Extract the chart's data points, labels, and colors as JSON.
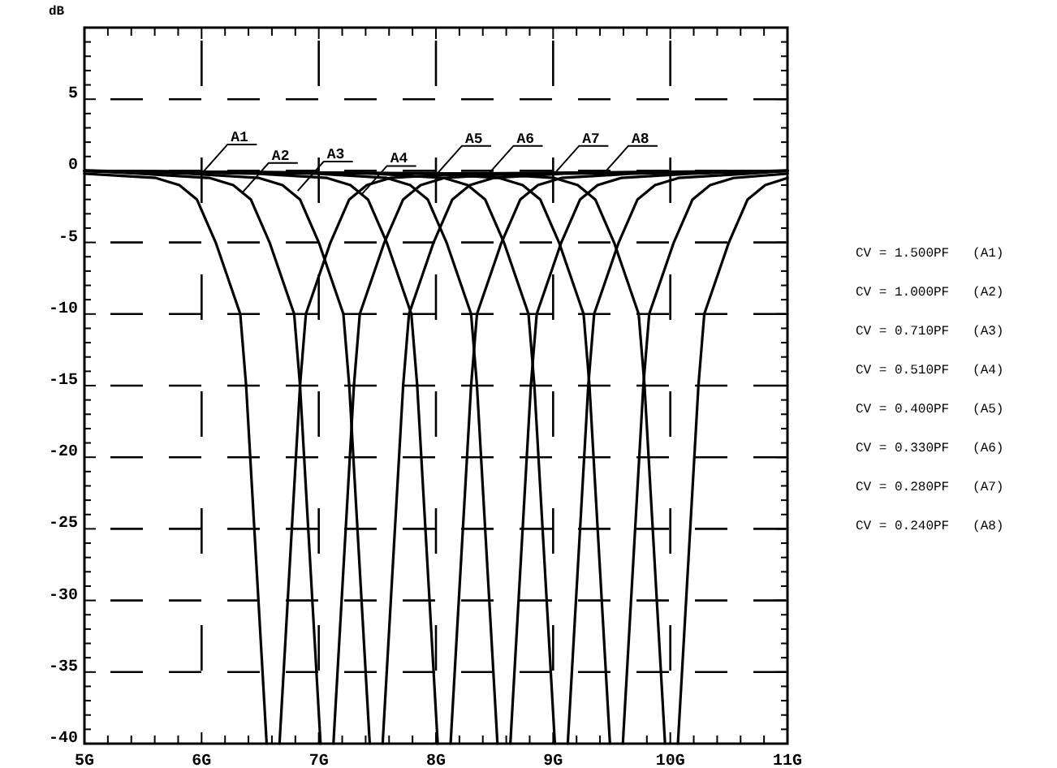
{
  "chart_data": {
    "type": "line",
    "ylabel": "dB",
    "xlim": [
      5,
      11
    ],
    "ylim": [
      -40,
      10
    ],
    "xticks": [
      {
        "value": 5,
        "label": "5G"
      },
      {
        "value": 5.2,
        "label": null
      },
      {
        "value": 5.4,
        "label": null
      },
      {
        "value": 5.6,
        "label": null
      },
      {
        "value": 5.8,
        "label": null
      },
      {
        "value": 6,
        "label": "6G"
      },
      {
        "value": 6.2,
        "label": null
      },
      {
        "value": 6.4,
        "label": null
      },
      {
        "value": 6.6,
        "label": null
      },
      {
        "value": 6.8,
        "label": null
      },
      {
        "value": 7,
        "label": "7G"
      },
      {
        "value": 7.2,
        "label": null
      },
      {
        "value": 7.4,
        "label": null
      },
      {
        "value": 7.6,
        "label": null
      },
      {
        "value": 7.8,
        "label": null
      },
      {
        "value": 8,
        "label": "8G"
      },
      {
        "value": 8.2,
        "label": null
      },
      {
        "value": 8.4,
        "label": null
      },
      {
        "value": 8.6,
        "label": null
      },
      {
        "value": 8.8,
        "label": null
      },
      {
        "value": 9,
        "label": "9G"
      },
      {
        "value": 9.2,
        "label": null
      },
      {
        "value": 9.4,
        "label": null
      },
      {
        "value": 9.6,
        "label": null
      },
      {
        "value": 9.8,
        "label": null
      },
      {
        "value": 10,
        "label": "10G"
      },
      {
        "value": 10.2,
        "label": null
      },
      {
        "value": 10.4,
        "label": null
      },
      {
        "value": 10.6,
        "label": null
      },
      {
        "value": 10.8,
        "label": null
      },
      {
        "value": 11,
        "label": "11G"
      }
    ],
    "yticks": [
      -40,
      {
        "value": -39,
        "label": null
      },
      {
        "value": -38,
        "label": null
      },
      {
        "value": -37,
        "label": null
      },
      {
        "value": -36,
        "label": null
      },
      -35,
      {
        "value": -34,
        "label": null
      },
      {
        "value": -33,
        "label": null
      },
      {
        "value": -32,
        "label": null
      },
      {
        "value": -31,
        "label": null
      },
      -30,
      {
        "value": -29,
        "label": null
      },
      {
        "value": -28,
        "label": null
      },
      {
        "value": -27,
        "label": null
      },
      {
        "value": -26,
        "label": null
      },
      -25,
      {
        "value": -24,
        "label": null
      },
      {
        "value": -23,
        "label": null
      },
      {
        "value": -22,
        "label": null
      },
      {
        "value": -21,
        "label": null
      },
      -20,
      {
        "value": -19,
        "label": null
      },
      {
        "value": -18,
        "label": null
      },
      {
        "value": -17,
        "label": null
      },
      {
        "value": -16,
        "label": null
      },
      -15,
      {
        "value": -14,
        "label": null
      },
      {
        "value": -13,
        "label": null
      },
      {
        "value": -12,
        "label": null
      },
      {
        "value": -11,
        "label": null
      },
      -10,
      {
        "value": -9,
        "label": null
      },
      {
        "value": -8,
        "label": null
      },
      {
        "value": -7,
        "label": null
      },
      {
        "value": -6,
        "label": null
      },
      -5,
      {
        "value": -4,
        "label": null
      },
      {
        "value": -3,
        "label": null
      },
      {
        "value": -2,
        "label": null
      },
      {
        "value": -1,
        "label": null
      },
      0,
      {
        "value": 1,
        "label": null
      },
      {
        "value": 2,
        "label": null
      },
      {
        "value": 3,
        "label": null
      },
      {
        "value": 4,
        "label": null
      },
      5,
      {
        "value": 6,
        "label": null
      },
      {
        "value": 7,
        "label": null
      },
      {
        "value": 8,
        "label": null
      },
      {
        "value": 9,
        "label": null
      },
      {
        "value": 10,
        "label": null
      }
    ],
    "grid": true,
    "series": [
      {
        "color": "#000000",
        "x": [
          5,
          5.61,
          5.81,
          5.96,
          6.12,
          6.33,
          6.38,
          6.555,
          6.61,
          6.665,
          6.84,
          6.89,
          7.1,
          7.26,
          7.41,
          7.61,
          8.21,
          11
        ],
        "values": [
          -0.2,
          -0.5,
          -1,
          -2,
          -5,
          -10,
          -15,
          -40,
          null,
          -40,
          -15,
          -10,
          -5,
          -2,
          -1,
          -0.5,
          -0.2,
          0
        ]
      },
      {
        "color": "#000000",
        "x": [
          5,
          5.47,
          6.07,
          6.27,
          6.42,
          6.58,
          6.79,
          6.84,
          7.015,
          7.07,
          7.125,
          7.3,
          7.35,
          7.56,
          7.72,
          7.87,
          8.07,
          8.67,
          11
        ],
        "values": [
          0,
          -0.2,
          -0.5,
          -1,
          -2,
          -5,
          -10,
          -15,
          -40,
          null,
          -40,
          -15,
          -10,
          -5,
          -2,
          -1,
          -0.5,
          -0.2,
          0
        ]
      },
      {
        "color": "#000000",
        "x": [
          5,
          5.89,
          6.49,
          6.69,
          6.84,
          7,
          7.21,
          7.26,
          7.435,
          7.49,
          7.545,
          7.72,
          7.77,
          7.98,
          8.14,
          8.29,
          8.49,
          9.09,
          11
        ],
        "values": [
          0,
          -0.2,
          -0.5,
          -1,
          -2,
          -5,
          -10,
          -15,
          -40,
          null,
          -40,
          -15,
          -10,
          -5,
          -2,
          -1,
          -0.5,
          -0.2,
          0
        ]
      },
      {
        "color": "#000000",
        "x": [
          5,
          6.47,
          7.07,
          7.27,
          7.42,
          7.58,
          7.79,
          7.84,
          8.015,
          8.07,
          8.125,
          8.3,
          8.35,
          8.56,
          8.72,
          8.87,
          9.07,
          9.67,
          11
        ],
        "values": [
          0,
          -0.2,
          -0.5,
          -1,
          -2,
          -5,
          -10,
          -15,
          -40,
          null,
          -40,
          -15,
          -10,
          -5,
          -2,
          -1,
          -0.5,
          -0.2,
          0
        ]
      },
      {
        "color": "#000000",
        "x": [
          5,
          6.98,
          7.58,
          7.78,
          7.93,
          8.09,
          8.3,
          8.35,
          8.525,
          8.58,
          8.635,
          8.81,
          8.86,
          9.07,
          9.23,
          9.38,
          9.58,
          10.18,
          11
        ],
        "values": [
          0,
          -0.2,
          -0.5,
          -1,
          -2,
          -5,
          -10,
          -15,
          -40,
          null,
          -40,
          -15,
          -10,
          -5,
          -2,
          -1,
          -0.5,
          -0.2,
          0
        ]
      },
      {
        "color": "#000000",
        "x": [
          5,
          7.47,
          8.07,
          8.27,
          8.42,
          8.58,
          8.79,
          8.84,
          9.015,
          9.07,
          9.125,
          9.3,
          9.35,
          9.56,
          9.72,
          9.87,
          10.07,
          10.67,
          11
        ],
        "values": [
          0,
          -0.2,
          -0.5,
          -1,
          -2,
          -5,
          -10,
          -15,
          -40,
          null,
          -40,
          -15,
          -10,
          -5,
          -2,
          -1,
          -0.5,
          -0.2,
          0
        ]
      },
      {
        "color": "#000000",
        "x": [
          5,
          7.94,
          8.54,
          8.74,
          8.89,
          9.05,
          9.26,
          9.31,
          9.485,
          9.54,
          9.595,
          9.77,
          9.82,
          10.03,
          10.19,
          10.34,
          10.54,
          11
        ],
        "values": [
          0,
          -0.2,
          -0.5,
          -1,
          -2,
          -5,
          -10,
          -15,
          -40,
          null,
          -40,
          -15,
          -10,
          -5,
          -2,
          -1,
          -0.5,
          -0.2
        ]
      },
      {
        "color": "#000000",
        "x": [
          5,
          8.41,
          9.01,
          9.21,
          9.36,
          9.52,
          9.73,
          9.78,
          9.955,
          10.01,
          10.065,
          10.24,
          10.29,
          10.5,
          10.66,
          10.81,
          11
        ],
        "values": [
          0,
          -0.2,
          -0.5,
          -1,
          -2,
          -5,
          -10,
          -15,
          -40,
          null,
          -40,
          -15,
          -10,
          -5,
          -2,
          -1,
          -0.5
        ]
      }
    ],
    "annotations": [
      {
        "text": "A1",
        "x": 6.0,
        "y": -0.2
      },
      {
        "text": "A2",
        "x": 6.35,
        "y": -1.5
      },
      {
        "text": "A3",
        "x": 6.82,
        "y": -1.4
      },
      {
        "text": "A4",
        "x": 7.36,
        "y": -1.7
      },
      {
        "text": "A5",
        "x": 8.0,
        "y": -0.3
      },
      {
        "text": "A6",
        "x": 8.44,
        "y": -0.3
      },
      {
        "text": "A7",
        "x": 9.0,
        "y": -0.3
      },
      {
        "text": "A8",
        "x": 9.42,
        "y": -0.3
      },
      "CV = 1.500PF   (A1)",
      "CV = 1.000PF   (A2)",
      "CV = 0.710PF   (A3)",
      "CV = 0.510PF   (A4)",
      "CV = 0.400PF   (A5)",
      "CV = 0.330PF   (A6)",
      "CV = 0.280PF   (A7)",
      "CV = 0.240PF   (A8)"
    ]
  }
}
